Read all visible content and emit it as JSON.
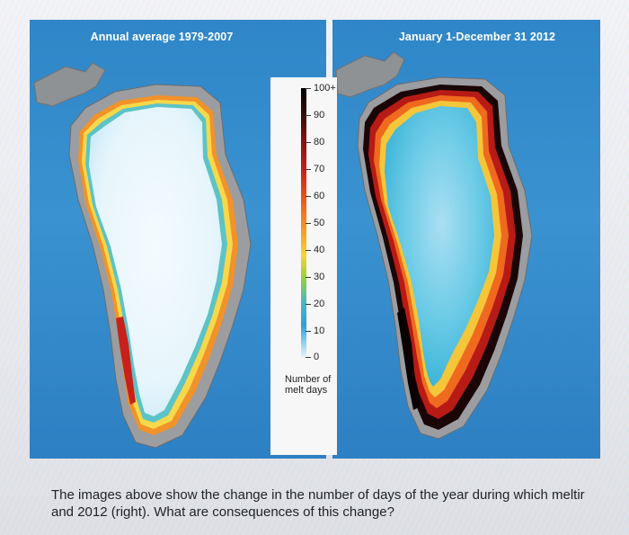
{
  "maps": {
    "left": {
      "title": "Annual average 1979-2007"
    },
    "right": {
      "title": "January 1-December 31 2012"
    }
  },
  "legend": {
    "ticks": [
      "100+",
      "90",
      "80",
      "70",
      "60",
      "50",
      "40",
      "30",
      "20",
      "10",
      "0"
    ],
    "caption_line1": "Number of",
    "caption_line2": "melt days"
  },
  "question": {
    "line1": "The images above show the change in the number of days of the year during which meltir",
    "line2": "and 2012 (right). What are consequences of this change?"
  },
  "colors": {
    "ocean": "#3a92d0",
    "land": "#8a8d90",
    "ice_low_melt": "#eaf6fc",
    "ice_high_melt": "#000000"
  }
}
